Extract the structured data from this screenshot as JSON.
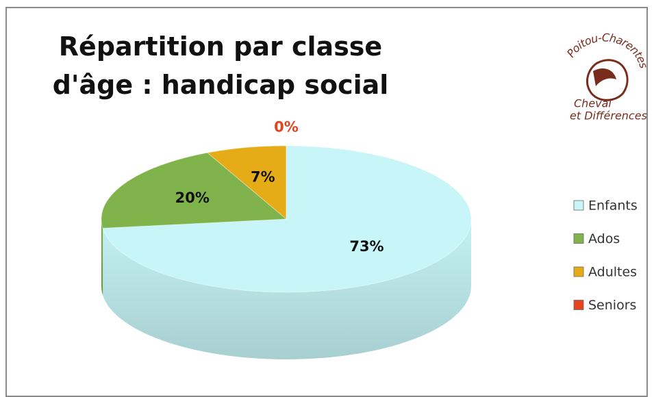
{
  "chart_data": {
    "type": "pie",
    "title": "Répartition par classe d'âge : handicap social",
    "categories": [
      "Enfants",
      "Ados",
      "Adultes",
      "Seniors"
    ],
    "values": [
      73,
      20,
      7,
      0
    ],
    "value_labels": [
      "73%",
      "20%",
      "7%",
      "0%"
    ],
    "colors": [
      "#c8f6f8",
      "#80b34b",
      "#e6ac17",
      "#e5421e"
    ],
    "legend": "right"
  },
  "logo": {
    "top": "Poitou-Charentes",
    "line1": "Cheval",
    "line2": "et Différences"
  }
}
